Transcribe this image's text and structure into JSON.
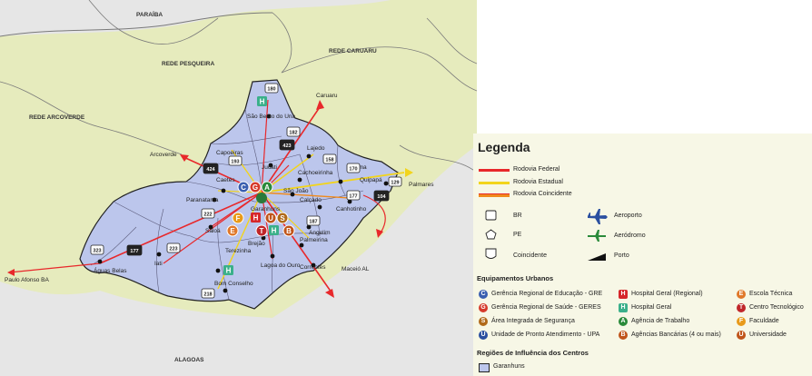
{
  "map": {
    "regions": [
      "PARAÍBA",
      "REDE PESQUEIRA",
      "REDE CARUARU",
      "REDE ARCOVERDE",
      "ALAGOAS"
    ],
    "destinations": [
      "Caruaru",
      "Arcoverde",
      "Palmares",
      "Paulo Afonso BA",
      "Maceió AL"
    ],
    "municipalities": [
      "São Bento do Una",
      "Capoeiras",
      "Jucati",
      "Lajedo",
      "Cachoeirinha",
      "Jurema",
      "Quipapá",
      "Caetés",
      "Paranatama",
      "Garanhuns",
      "São João",
      "Calçado",
      "Angelim",
      "Canhotinho",
      "Saloá",
      "Iati",
      "Águas Belas",
      "Terezinha",
      "Brejão",
      "Palmeirina",
      "Lagoa do Ouro",
      "Correntes",
      "Bom Conselho"
    ],
    "road_shields": [
      "180",
      "182",
      "423",
      "424",
      "193",
      "158",
      "177",
      "170",
      "129",
      "104",
      "187",
      "222",
      "223",
      "323",
      "218",
      "177"
    ],
    "service_badges": [
      "C",
      "G",
      "A",
      "H",
      "F",
      "U",
      "S",
      "E",
      "T",
      "H",
      "B",
      "H"
    ]
  },
  "legend": {
    "title": "Legenda",
    "roads": [
      {
        "label": "Rodovia Federal",
        "color": "#e8282b"
      },
      {
        "label": "Rodovia Estadual",
        "color": "#f2d41c"
      },
      {
        "label": "Rodovia Coincidente",
        "color": "#f08a1c"
      }
    ],
    "shields": [
      "BR",
      "PE",
      "Coincidente"
    ],
    "transport": [
      "Aeroporto",
      "Aeródromo",
      "Porto"
    ],
    "equip_title": "Equipamentos Urbanos",
    "equipment": [
      {
        "label": "Gerência Regional de Educação - GRE",
        "icon": "C",
        "color": "#3a5fb0"
      },
      {
        "label": "Gerência Regional de Saúde - GERES",
        "icon": "G",
        "color": "#d63a2a"
      },
      {
        "label": "Área Integrada de Segurança",
        "icon": "S",
        "color": "#b06a1a"
      },
      {
        "label": "Unidade de Pronto Atendimento - UPA",
        "icon": "U",
        "color": "#2a4fa0"
      },
      {
        "label": "Hospital Geral (Regional)",
        "icon": "H",
        "color": "#d6262a"
      },
      {
        "label": "Hospital Geral",
        "icon": "H",
        "color": "#3ab08a"
      },
      {
        "label": "Agência de Trabalho",
        "icon": "A",
        "color": "#2a8a3a"
      },
      {
        "label": "Agências Bancárias (4 ou mais)",
        "icon": "B",
        "color": "#c0541a"
      },
      {
        "label": "Escola Técnica",
        "icon": "E",
        "color": "#e0782a"
      },
      {
        "label": "Centro Tecnológico",
        "icon": "T",
        "color": "#c0262a"
      },
      {
        "label": "Faculdade",
        "icon": "F",
        "color": "#e89a1a"
      },
      {
        "label": "Universidade",
        "icon": "U",
        "color": "#c0541a"
      }
    ],
    "regions_title": "Regiões de Influência dos Centros",
    "region_item": {
      "label": "Garanhuns",
      "color": "#b8c4ec"
    }
  }
}
